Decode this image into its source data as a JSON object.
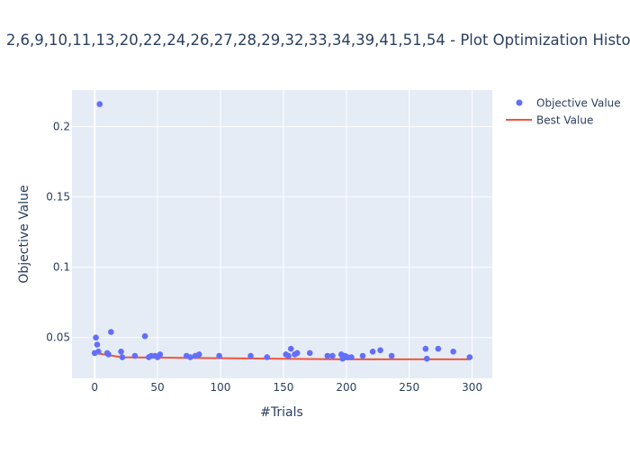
{
  "chart_data": {
    "type": "scatter",
    "title": "2,6,9,10,11,13,20,22,24,26,27,28,29,32,33,34,39,41,51,54 - Plot Optimization History",
    "xlabel": "#Trials",
    "ylabel": "Objective Value",
    "xlim": [
      -18,
      316
    ],
    "ylim": [
      0.021,
      0.226
    ],
    "x_ticks": [
      0,
      50,
      100,
      150,
      200,
      250,
      300
    ],
    "y_ticks": [
      0.05,
      0.1,
      0.15,
      0.2
    ],
    "y_tick_labels": [
      "0.05",
      "0.1",
      "0.15",
      "0.2"
    ],
    "grid": true,
    "legend_position": "top-right",
    "series": [
      {
        "name": "Objective Value",
        "kind": "markers",
        "color": "#636efa",
        "x": [
          0,
          1,
          2,
          3,
          4,
          10,
          11,
          13,
          21,
          22,
          32,
          40,
          43,
          45,
          48,
          50,
          52,
          73,
          76,
          80,
          83,
          99,
          124,
          137,
          152,
          154,
          156,
          159,
          161,
          171,
          185,
          189,
          196,
          197,
          199,
          201,
          204,
          213,
          221,
          227,
          236,
          263,
          264,
          273,
          285,
          298
        ],
        "y": [
          0.039,
          0.05,
          0.045,
          0.04,
          0.216,
          0.039,
          0.038,
          0.054,
          0.04,
          0.036,
          0.037,
          0.051,
          0.036,
          0.037,
          0.037,
          0.036,
          0.038,
          0.037,
          0.036,
          0.037,
          0.038,
          0.037,
          0.037,
          0.036,
          0.038,
          0.037,
          0.042,
          0.038,
          0.039,
          0.039,
          0.037,
          0.037,
          0.038,
          0.035,
          0.037,
          0.036,
          0.036,
          0.037,
          0.04,
          0.041,
          0.037,
          0.042,
          0.035,
          0.042,
          0.04,
          0.036
        ]
      },
      {
        "name": "Best Value",
        "kind": "line",
        "color": "#ef553b",
        "x": [
          0,
          22,
          197,
          298
        ],
        "y": [
          0.039,
          0.036,
          0.0345,
          0.0345
        ]
      }
    ]
  }
}
